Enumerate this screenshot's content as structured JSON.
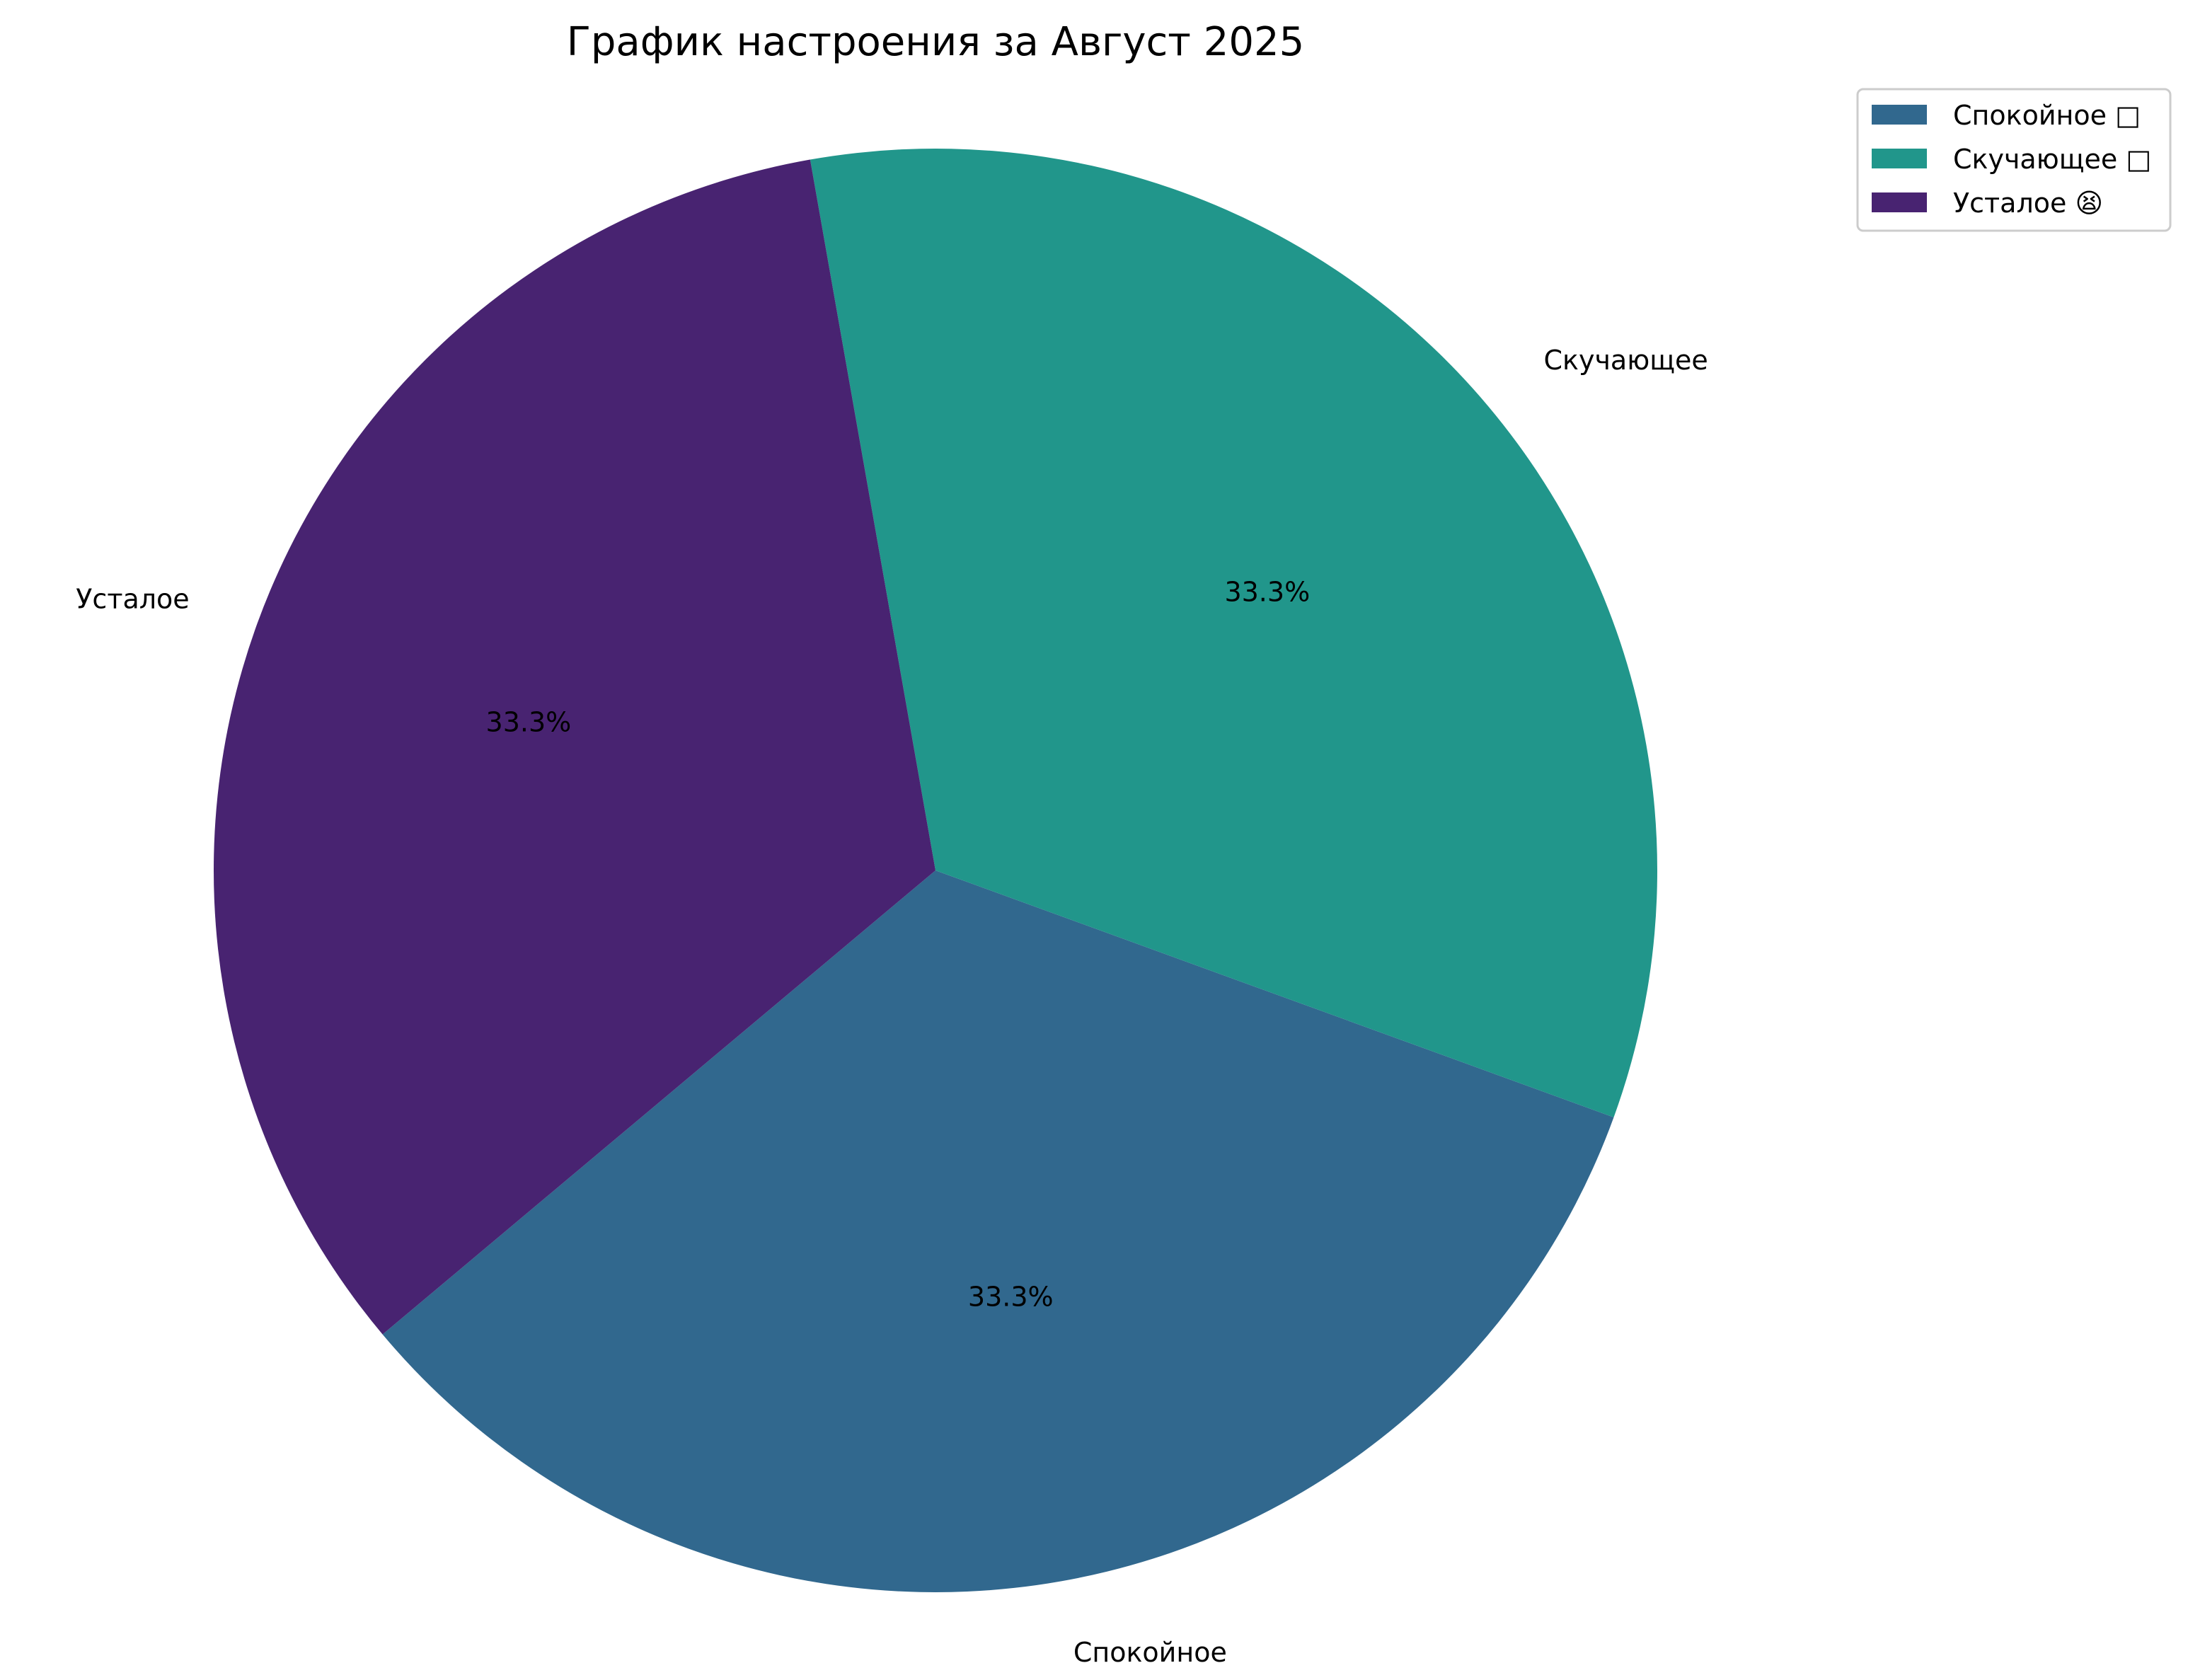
{
  "chart_data": {
    "type": "pie",
    "title": "График настроения за Август 2025",
    "slices": [
      {
        "label": "Спокойное",
        "legend": "Спокойное □",
        "value": 33.3,
        "pct_label": "33.3%",
        "color": "#31688e"
      },
      {
        "label": "Скучающее",
        "legend": "Скучающее □",
        "value": 33.3,
        "pct_label": "33.3%",
        "color": "#21968b"
      },
      {
        "label": "Усталое",
        "legend": "Усталое 😫",
        "value": 33.3,
        "pct_label": "33.3%",
        "color": "#482371"
      }
    ],
    "legend_position": "top-right"
  }
}
